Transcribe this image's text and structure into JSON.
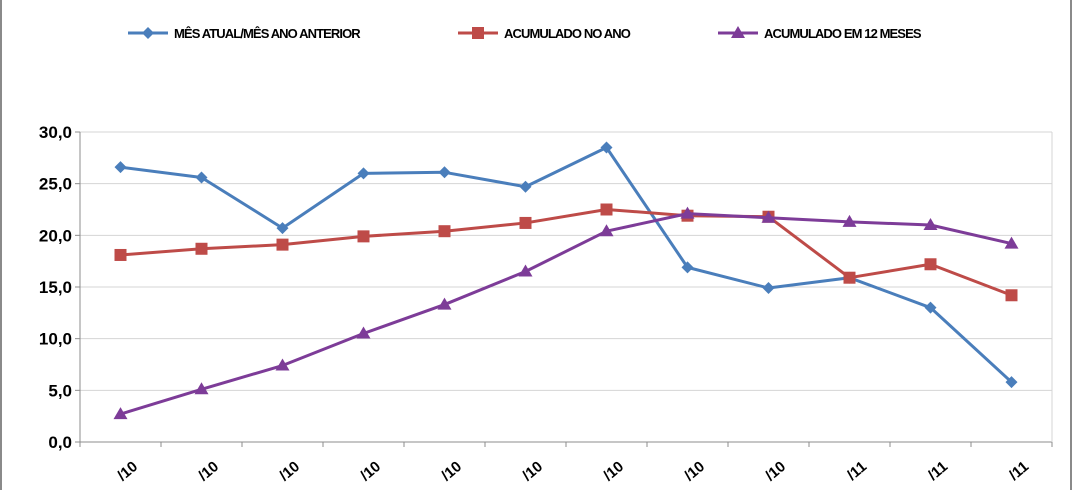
{
  "chart_data": {
    "type": "line",
    "categories": [
      "/10",
      "/10",
      "/10",
      "/10",
      "/10",
      "/10",
      "/10",
      "/10",
      "/10",
      "/11",
      "/11",
      "/11"
    ],
    "ylim": [
      0,
      30
    ],
    "yticks": [
      "0,0",
      "5,0",
      "10,0",
      "15,0",
      "20,0",
      "25,0",
      "30,0"
    ],
    "grid": true,
    "legend_position": "top",
    "series": [
      {
        "name": "MÊS ATUAL/MÊS ANO ANTERIOR",
        "color": "#4a7ebb",
        "marker": "diamond",
        "values": [
          26.6,
          25.6,
          20.7,
          26.0,
          26.1,
          24.7,
          28.5,
          16.9,
          14.9,
          15.9,
          13.0,
          5.8
        ]
      },
      {
        "name": "ACUMULADO NO ANO",
        "color": "#be4b48",
        "marker": "square",
        "values": [
          18.1,
          18.7,
          19.1,
          19.9,
          20.4,
          21.2,
          22.5,
          21.9,
          21.8,
          15.9,
          17.2,
          14.2
        ]
      },
      {
        "name": "ACUMULADO EM 12 MESES",
        "color": "#7d3c98",
        "marker": "triangle",
        "values": [
          2.7,
          5.1,
          7.4,
          10.5,
          13.3,
          16.5,
          20.4,
          22.1,
          21.7,
          21.3,
          21.0,
          19.2
        ]
      }
    ]
  }
}
